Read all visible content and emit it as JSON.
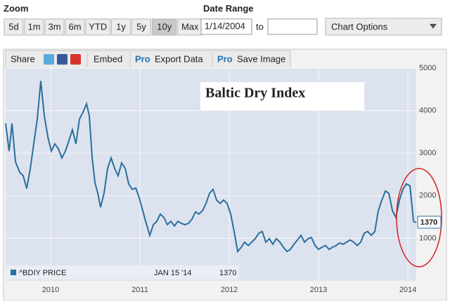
{
  "toolbar": {
    "zoom_label": "Zoom",
    "zoom_buttons": [
      "5d",
      "1m",
      "3m",
      "6m",
      "YTD",
      "1y",
      "5y",
      "10y",
      "Max"
    ],
    "date_range_label": "Date Range",
    "date_from": "1/14/2004",
    "to_label": "to",
    "chart_options": "Chart Options"
  },
  "tabs": {
    "share": "Share",
    "embed": "Embed",
    "pro_1": "Pro",
    "export": "Export Data",
    "pro_2": "Pro",
    "save": "Save Image"
  },
  "chart_data": {
    "type": "line",
    "title": "Baltic Dry Index",
    "x": [
      2009.496,
      2009.535,
      2009.567,
      2009.606,
      2009.654,
      2009.693,
      2009.732,
      2009.772,
      2009.811,
      2009.85,
      2009.89,
      2009.929,
      2009.969,
      2010.008,
      2010.047,
      2010.087,
      2010.126,
      2010.165,
      2010.205,
      2010.244,
      2010.283,
      2010.323,
      2010.362,
      2010.402,
      2010.433,
      2010.465,
      2010.496,
      2010.528,
      2010.559,
      2010.598,
      2010.638,
      2010.677,
      2010.717,
      2010.756,
      2010.795,
      2010.835,
      2010.874,
      2010.913,
      2010.953,
      2010.992,
      2011.031,
      2011.071,
      2011.11,
      2011.15,
      2011.189,
      2011.228,
      2011.268,
      2011.307,
      2011.346,
      2011.386,
      2011.425,
      2011.465,
      2011.504,
      2011.543,
      2011.583,
      2011.622,
      2011.661,
      2011.701,
      2011.74,
      2011.78,
      2011.819,
      2011.858,
      2011.898,
      2011.937,
      2011.976,
      2012.016,
      2012.055,
      2012.094,
      2012.134,
      2012.173,
      2012.213,
      2012.252,
      2012.291,
      2012.331,
      2012.37,
      2012.409,
      2012.449,
      2012.488,
      2012.528,
      2012.567,
      2012.606,
      2012.646,
      2012.685,
      2012.724,
      2012.764,
      2012.803,
      2012.843,
      2012.882,
      2012.921,
      2012.961,
      2013.0,
      2013.039,
      2013.079,
      2013.118,
      2013.157,
      2013.197,
      2013.236,
      2013.276,
      2013.315,
      2013.354,
      2013.394,
      2013.433,
      2013.472,
      2013.512,
      2013.551,
      2013.591,
      2013.63,
      2013.669,
      2013.709,
      2013.748,
      2013.787,
      2013.827,
      2013.866,
      2013.906,
      2013.945,
      2013.984,
      2014.024,
      2014.063,
      2014.094
    ],
    "series": [
      {
        "name": "^BDIY PRICE",
        "color": "#2a6f9e",
        "values": [
          3700,
          3050,
          3700,
          2800,
          2550,
          2470,
          2170,
          2640,
          3220,
          3800,
          4700,
          3880,
          3380,
          3050,
          3220,
          3100,
          2890,
          3050,
          3300,
          3550,
          3220,
          3800,
          3960,
          4160,
          3880,
          2890,
          2310,
          2060,
          1730,
          2060,
          2640,
          2890,
          2640,
          2470,
          2770,
          2640,
          2280,
          2150,
          2180,
          1950,
          1650,
          1350,
          1070,
          1320,
          1400,
          1570,
          1490,
          1320,
          1400,
          1290,
          1400,
          1350,
          1320,
          1350,
          1450,
          1620,
          1570,
          1650,
          1820,
          2060,
          2150,
          1900,
          1820,
          1900,
          1820,
          1570,
          1160,
          690,
          790,
          910,
          830,
          910,
          990,
          1120,
          1160,
          910,
          990,
          860,
          990,
          910,
          790,
          690,
          740,
          860,
          960,
          1070,
          910,
          990,
          1020,
          830,
          740,
          790,
          830,
          740,
          790,
          830,
          890,
          860,
          910,
          960,
          910,
          830,
          910,
          1120,
          1160,
          1070,
          1160,
          1650,
          1900,
          2110,
          2060,
          1650,
          1490,
          1900,
          2150,
          2280,
          2230,
          1400,
          1370
        ]
      }
    ],
    "legend_date": "JAN 15 '14",
    "xlim": [
      2009.496,
      2014.094
    ],
    "xticks": [
      2010,
      2011,
      2012,
      2013,
      2014
    ],
    "ylim": [
      0,
      5000
    ],
    "yticks": [
      1000,
      2000,
      3000,
      4000,
      5000
    ],
    "grid": true
  }
}
